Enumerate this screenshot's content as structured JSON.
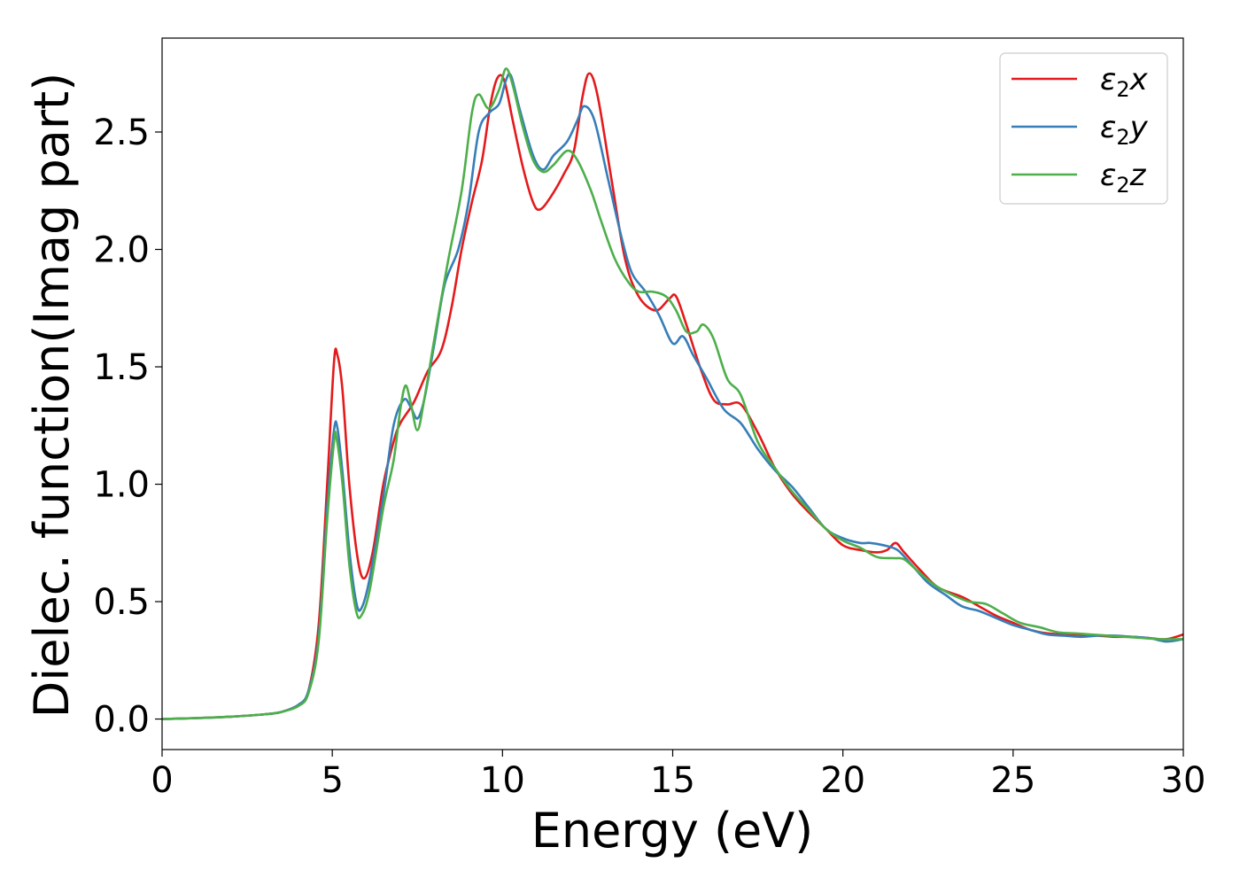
{
  "chart_data": {
    "type": "line",
    "title": "",
    "xlabel": "Energy (eV)",
    "ylabel": "Dielec. function(Imag part)",
    "xlim": [
      0,
      30
    ],
    "ylim": [
      -0.13,
      2.9
    ],
    "xticks": [
      0,
      5,
      10,
      15,
      20,
      25,
      30
    ],
    "xtick_labels": [
      "0",
      "5",
      "10",
      "15",
      "20",
      "25",
      "30"
    ],
    "yticks": [
      0.0,
      0.5,
      1.0,
      1.5,
      2.0,
      2.5
    ],
    "ytick_labels": [
      "0.0",
      "0.5",
      "1.0",
      "1.5",
      "2.0",
      "2.5"
    ],
    "grid": false,
    "legend_position": "top-right",
    "series": [
      {
        "name": "ε₂x",
        "legend_base": "ε",
        "legend_sub": "2",
        "legend_tail": "x",
        "color": "#e41a1c",
        "points": [
          [
            0,
            0
          ],
          [
            1,
            0.004
          ],
          [
            2,
            0.01
          ],
          [
            3,
            0.02
          ],
          [
            3.5,
            0.03
          ],
          [
            4,
            0.06
          ],
          [
            4.3,
            0.12
          ],
          [
            4.6,
            0.4
          ],
          [
            4.85,
            1.0
          ],
          [
            5.05,
            1.52
          ],
          [
            5.15,
            1.55
          ],
          [
            5.3,
            1.4
          ],
          [
            5.5,
            1.0
          ],
          [
            5.75,
            0.68
          ],
          [
            5.95,
            0.6
          ],
          [
            6.2,
            0.72
          ],
          [
            6.5,
            1.0
          ],
          [
            6.8,
            1.18
          ],
          [
            7.0,
            1.26
          ],
          [
            7.4,
            1.35
          ],
          [
            7.8,
            1.48
          ],
          [
            8.2,
            1.57
          ],
          [
            8.5,
            1.75
          ],
          [
            8.8,
            2.0
          ],
          [
            9.1,
            2.2
          ],
          [
            9.4,
            2.38
          ],
          [
            9.65,
            2.62
          ],
          [
            9.85,
            2.73
          ],
          [
            10.05,
            2.72
          ],
          [
            10.3,
            2.55
          ],
          [
            10.6,
            2.35
          ],
          [
            10.9,
            2.2
          ],
          [
            11.1,
            2.17
          ],
          [
            11.4,
            2.22
          ],
          [
            11.8,
            2.32
          ],
          [
            12.1,
            2.42
          ],
          [
            12.35,
            2.65
          ],
          [
            12.55,
            2.75
          ],
          [
            12.8,
            2.65
          ],
          [
            13.2,
            2.3
          ],
          [
            13.6,
            1.96
          ],
          [
            14.0,
            1.8
          ],
          [
            14.5,
            1.74
          ],
          [
            14.9,
            1.79
          ],
          [
            15.1,
            1.8
          ],
          [
            15.4,
            1.68
          ],
          [
            15.8,
            1.5
          ],
          [
            16.2,
            1.36
          ],
          [
            16.6,
            1.34
          ],
          [
            17.0,
            1.34
          ],
          [
            17.5,
            1.22
          ],
          [
            18.0,
            1.07
          ],
          [
            18.5,
            0.96
          ],
          [
            19.0,
            0.88
          ],
          [
            19.5,
            0.81
          ],
          [
            20.0,
            0.74
          ],
          [
            20.5,
            0.72
          ],
          [
            21.0,
            0.71
          ],
          [
            21.3,
            0.72
          ],
          [
            21.55,
            0.75
          ],
          [
            21.8,
            0.71
          ],
          [
            22.3,
            0.63
          ],
          [
            22.8,
            0.56
          ],
          [
            23.5,
            0.52
          ],
          [
            24.0,
            0.48
          ],
          [
            24.5,
            0.44
          ],
          [
            25.0,
            0.41
          ],
          [
            25.5,
            0.38
          ],
          [
            26.0,
            0.365
          ],
          [
            26.5,
            0.36
          ],
          [
            27.0,
            0.36
          ],
          [
            27.5,
            0.355
          ],
          [
            28.0,
            0.35
          ],
          [
            28.5,
            0.35
          ],
          [
            29.0,
            0.345
          ],
          [
            29.5,
            0.34
          ],
          [
            30.0,
            0.36
          ]
        ]
      },
      {
        "name": "ε₂y",
        "legend_base": "ε",
        "legend_sub": "2",
        "legend_tail": "y",
        "color": "#377eb8",
        "points": [
          [
            0,
            0
          ],
          [
            1,
            0.004
          ],
          [
            2,
            0.01
          ],
          [
            3,
            0.02
          ],
          [
            3.5,
            0.03
          ],
          [
            4,
            0.06
          ],
          [
            4.3,
            0.12
          ],
          [
            4.6,
            0.35
          ],
          [
            4.85,
            0.9
          ],
          [
            5.05,
            1.23
          ],
          [
            5.15,
            1.24
          ],
          [
            5.3,
            1.05
          ],
          [
            5.5,
            0.72
          ],
          [
            5.7,
            0.5
          ],
          [
            5.85,
            0.47
          ],
          [
            6.1,
            0.6
          ],
          [
            6.5,
            0.95
          ],
          [
            6.8,
            1.25
          ],
          [
            7.1,
            1.36
          ],
          [
            7.3,
            1.33
          ],
          [
            7.5,
            1.28
          ],
          [
            7.7,
            1.36
          ],
          [
            8.0,
            1.6
          ],
          [
            8.3,
            1.85
          ],
          [
            8.7,
            2.0
          ],
          [
            9.0,
            2.2
          ],
          [
            9.3,
            2.5
          ],
          [
            9.6,
            2.58
          ],
          [
            9.9,
            2.62
          ],
          [
            10.1,
            2.72
          ],
          [
            10.25,
            2.74
          ],
          [
            10.5,
            2.6
          ],
          [
            10.9,
            2.4
          ],
          [
            11.2,
            2.34
          ],
          [
            11.5,
            2.4
          ],
          [
            11.9,
            2.46
          ],
          [
            12.2,
            2.55
          ],
          [
            12.4,
            2.61
          ],
          [
            12.7,
            2.55
          ],
          [
            13.1,
            2.3
          ],
          [
            13.5,
            2.05
          ],
          [
            13.8,
            1.9
          ],
          [
            14.2,
            1.82
          ],
          [
            14.6,
            1.72
          ],
          [
            15.0,
            1.6
          ],
          [
            15.3,
            1.63
          ],
          [
            15.6,
            1.55
          ],
          [
            16.0,
            1.45
          ],
          [
            16.5,
            1.32
          ],
          [
            17.0,
            1.26
          ],
          [
            17.5,
            1.15
          ],
          [
            18.0,
            1.06
          ],
          [
            18.5,
            0.99
          ],
          [
            19.0,
            0.9
          ],
          [
            19.5,
            0.81
          ],
          [
            20.0,
            0.77
          ],
          [
            20.5,
            0.75
          ],
          [
            20.8,
            0.75
          ],
          [
            21.2,
            0.74
          ],
          [
            21.6,
            0.72
          ],
          [
            22.0,
            0.66
          ],
          [
            22.5,
            0.58
          ],
          [
            23.0,
            0.53
          ],
          [
            23.5,
            0.48
          ],
          [
            24.0,
            0.46
          ],
          [
            24.5,
            0.43
          ],
          [
            25.0,
            0.4
          ],
          [
            25.5,
            0.38
          ],
          [
            26.0,
            0.36
          ],
          [
            26.5,
            0.355
          ],
          [
            27.0,
            0.35
          ],
          [
            27.5,
            0.355
          ],
          [
            28.0,
            0.355
          ],
          [
            28.5,
            0.35
          ],
          [
            29.0,
            0.345
          ],
          [
            29.5,
            0.33
          ],
          [
            30.0,
            0.34
          ]
        ]
      },
      {
        "name": "ε₂z",
        "legend_base": "ε",
        "legend_sub": "2",
        "legend_tail": "z",
        "color": "#4daf4a",
        "points": [
          [
            0,
            0
          ],
          [
            1,
            0.004
          ],
          [
            2,
            0.01
          ],
          [
            3,
            0.02
          ],
          [
            3.5,
            0.03
          ],
          [
            4,
            0.055
          ],
          [
            4.3,
            0.11
          ],
          [
            4.6,
            0.33
          ],
          [
            4.85,
            0.85
          ],
          [
            5.05,
            1.18
          ],
          [
            5.12,
            1.2
          ],
          [
            5.3,
            1.0
          ],
          [
            5.5,
            0.66
          ],
          [
            5.7,
            0.46
          ],
          [
            5.85,
            0.44
          ],
          [
            6.1,
            0.55
          ],
          [
            6.5,
            0.9
          ],
          [
            6.8,
            1.1
          ],
          [
            7.0,
            1.32
          ],
          [
            7.15,
            1.42
          ],
          [
            7.3,
            1.35
          ],
          [
            7.5,
            1.23
          ],
          [
            7.7,
            1.36
          ],
          [
            8.0,
            1.62
          ],
          [
            8.4,
            1.95
          ],
          [
            8.8,
            2.25
          ],
          [
            9.1,
            2.58
          ],
          [
            9.3,
            2.66
          ],
          [
            9.6,
            2.6
          ],
          [
            9.9,
            2.68
          ],
          [
            10.1,
            2.77
          ],
          [
            10.3,
            2.7
          ],
          [
            10.6,
            2.52
          ],
          [
            10.9,
            2.38
          ],
          [
            11.2,
            2.33
          ],
          [
            11.5,
            2.36
          ],
          [
            11.9,
            2.42
          ],
          [
            12.2,
            2.38
          ],
          [
            12.6,
            2.25
          ],
          [
            12.9,
            2.12
          ],
          [
            13.3,
            1.96
          ],
          [
            13.7,
            1.86
          ],
          [
            14.0,
            1.82
          ],
          [
            14.4,
            1.82
          ],
          [
            14.8,
            1.8
          ],
          [
            15.1,
            1.74
          ],
          [
            15.4,
            1.65
          ],
          [
            15.7,
            1.65
          ],
          [
            15.9,
            1.68
          ],
          [
            16.2,
            1.62
          ],
          [
            16.6,
            1.45
          ],
          [
            17.0,
            1.38
          ],
          [
            17.5,
            1.18
          ],
          [
            18.0,
            1.07
          ],
          [
            18.5,
            0.97
          ],
          [
            19.0,
            0.89
          ],
          [
            19.5,
            0.81
          ],
          [
            20.0,
            0.76
          ],
          [
            20.5,
            0.73
          ],
          [
            21.0,
            0.69
          ],
          [
            21.5,
            0.685
          ],
          [
            21.8,
            0.68
          ],
          [
            22.2,
            0.63
          ],
          [
            22.7,
            0.57
          ],
          [
            23.2,
            0.53
          ],
          [
            23.7,
            0.5
          ],
          [
            24.2,
            0.49
          ],
          [
            24.7,
            0.45
          ],
          [
            25.2,
            0.41
          ],
          [
            25.8,
            0.39
          ],
          [
            26.3,
            0.37
          ],
          [
            26.8,
            0.365
          ],
          [
            27.3,
            0.36
          ],
          [
            27.8,
            0.355
          ],
          [
            28.3,
            0.35
          ],
          [
            28.8,
            0.345
          ],
          [
            29.3,
            0.34
          ],
          [
            30.0,
            0.34
          ]
        ]
      }
    ]
  }
}
